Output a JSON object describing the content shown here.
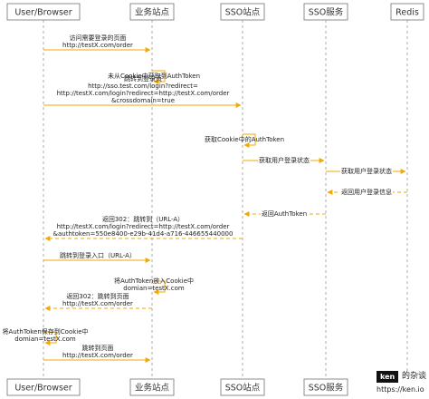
{
  "actors": [
    {
      "id": "browser",
      "label": "User/Browser"
    },
    {
      "id": "site",
      "label": "业务站点"
    },
    {
      "id": "sso",
      "label": "SSO站点"
    },
    {
      "id": "ssosvc",
      "label": "SSO服务"
    },
    {
      "id": "redis",
      "label": "Redis"
    }
  ],
  "messages": [
    {
      "from": "browser",
      "to": "site",
      "style": "solid",
      "lines": [
        "访问需要登录的页面",
        "http://testX.com/order"
      ]
    },
    {
      "from": "site",
      "to": "site",
      "style": "solid",
      "lines": [
        "未从Cookie中获取到AuthToken"
      ]
    },
    {
      "from": "browser",
      "to": "sso",
      "style": "solid",
      "lines": [
        "跳转到登录页",
        "http://sso.test.com/login?redirect=",
        "http://testX.com/login?redirect=http://testX.com/order",
        "&crossdomain=true"
      ]
    },
    {
      "from": "sso",
      "to": "sso",
      "style": "solid",
      "lines": [
        "获取Cookie中的AuthToken"
      ]
    },
    {
      "from": "sso",
      "to": "ssosvc",
      "style": "solid",
      "lines": [
        "获取用户登录状态"
      ]
    },
    {
      "from": "ssosvc",
      "to": "redis",
      "style": "solid",
      "lines": [
        "获取用户登录状态"
      ]
    },
    {
      "from": "redis",
      "to": "ssosvc",
      "style": "dashed",
      "lines": [
        "返回用户登录信息"
      ]
    },
    {
      "from": "ssosvc",
      "to": "sso",
      "style": "dashed",
      "lines": [
        "返回AuthToken"
      ]
    },
    {
      "from": "sso",
      "to": "browser",
      "style": "dashed",
      "lines": [
        "返回302：跳转到（URL-A）",
        "http://testX.com/login?redirect=http://testX.com/order",
        "&authtoken=550e8400-e29b-41d4-a716-446655440000"
      ]
    },
    {
      "from": "browser",
      "to": "site",
      "style": "solid",
      "lines": [
        "跳转到登录入口（URL-A）"
      ]
    },
    {
      "from": "site",
      "to": "site",
      "style": "solid",
      "lines": [
        "将AuthToken放入Cookie中",
        "domian=testX.com"
      ]
    },
    {
      "from": "site",
      "to": "browser",
      "style": "dashed",
      "lines": [
        "返回302：跳转到页面",
        "http://testX.com/order"
      ]
    },
    {
      "from": "browser",
      "to": "browser",
      "style": "solid",
      "lines": [
        "将AuthToken保存到Cookie中",
        "domian=testX.com"
      ]
    },
    {
      "from": "browser",
      "to": "site",
      "style": "solid",
      "lines": [
        "跳转到页面",
        "http://testX.com/order"
      ]
    }
  ],
  "watermark": {
    "badge": "ken",
    "name": "的杂谈",
    "url": "https://ken.io"
  },
  "colors": {
    "arrow": "#f2a900",
    "lifeline": "#9a9a9a",
    "box_border": "#8c8c8c"
  }
}
